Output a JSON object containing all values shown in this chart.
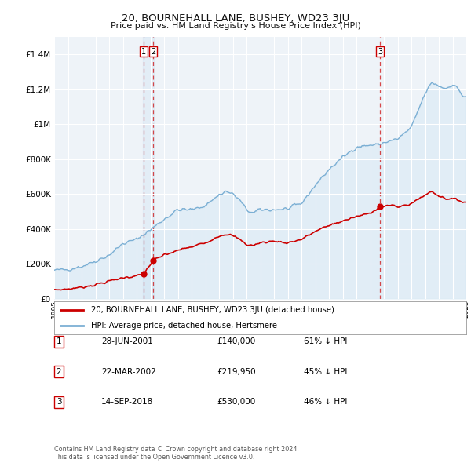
{
  "title": "20, BOURNEHALL LANE, BUSHEY, WD23 3JU",
  "subtitle": "Price paid vs. HM Land Registry's House Price Index (HPI)",
  "ylim": [
    0,
    1500000
  ],
  "yticks": [
    0,
    200000,
    400000,
    600000,
    800000,
    1000000,
    1200000,
    1400000
  ],
  "ytick_labels": [
    "£0",
    "£200K",
    "£400K",
    "£600K",
    "£800K",
    "£1M",
    "£1.2M",
    "£1.4M"
  ],
  "hpi_color": "#7bafd4",
  "hpi_fill_color": "#d6e8f5",
  "price_color": "#cc0000",
  "dashed_color": "#cc0000",
  "legend_label_price": "20, BOURNEHALL LANE, BUSHEY, WD23 3JU (detached house)",
  "legend_label_hpi": "HPI: Average price, detached house, Hertsmere",
  "sale_dates": [
    2001.5,
    2002.22,
    2018.71
  ],
  "sale_prices": [
    140000,
    219950,
    530000
  ],
  "sale_labels": [
    "1",
    "2",
    "3"
  ],
  "table_entries": [
    {
      "label": "1",
      "date": "28-JUN-2001",
      "price": "£140,000",
      "hpi": "61% ↓ HPI"
    },
    {
      "label": "2",
      "date": "22-MAR-2002",
      "price": "£219,950",
      "hpi": "45% ↓ HPI"
    },
    {
      "label": "3",
      "date": "14-SEP-2018",
      "price": "£530,000",
      "hpi": "46% ↓ HPI"
    }
  ],
  "footer": "Contains HM Land Registry data © Crown copyright and database right 2024.\nThis data is licensed under the Open Government Licence v3.0.",
  "background_color": "#f0f4f8",
  "chart_bg_color": "#eef3f8",
  "grid_color": "#ffffff",
  "legend_border_color": "#aaaaaa"
}
